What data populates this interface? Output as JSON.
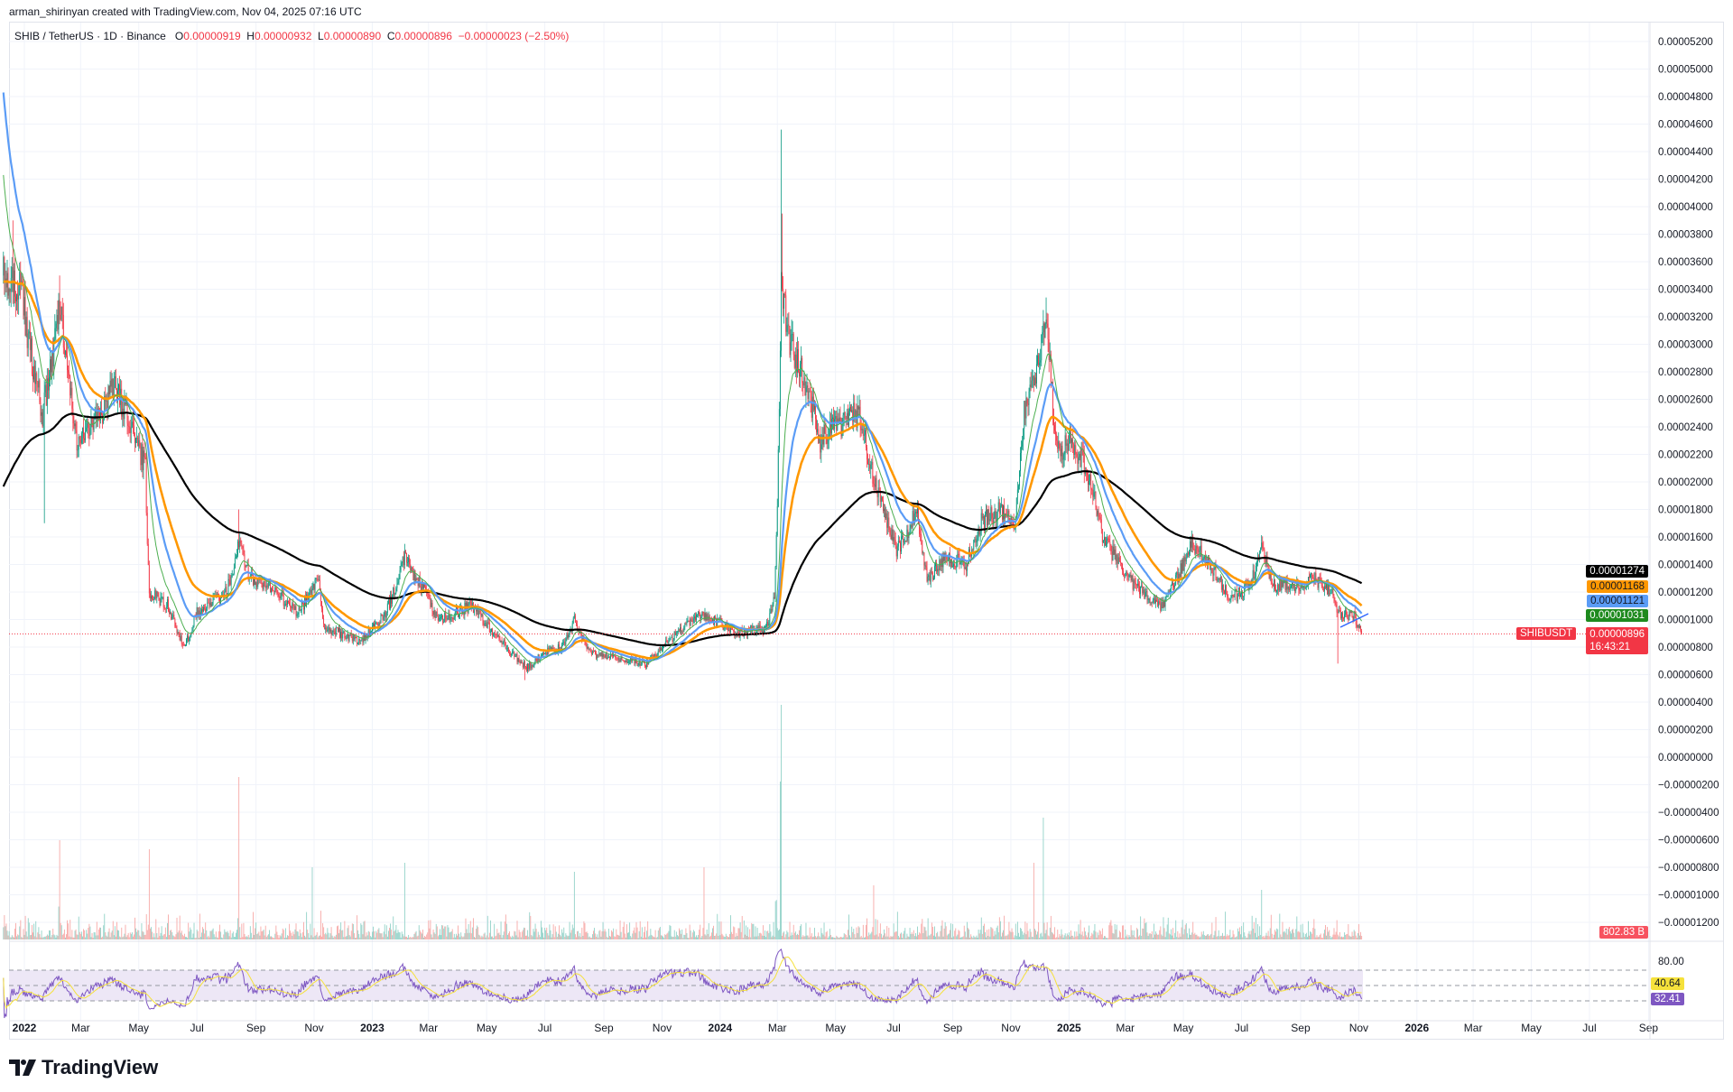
{
  "header": {
    "credit": "arman_shirinyan created with TradingView.com, Nov 04, 2025 07:16 UTC",
    "symbol": "SHIB / TetherUS · 1D · Binance",
    "o_label": "O",
    "open": "0.00000919",
    "h_label": "H",
    "high": "0.00000932",
    "l_label": "L",
    "low": "0.00000890",
    "c_label": "C",
    "close": "0.00000896",
    "change": "−0.00000023 (−2.50%)"
  },
  "labels": {
    "ma_black": "0.00001274",
    "ma_orange": "0.00001168",
    "ma_blue": "0.00001121",
    "ma_green": "0.00001031",
    "symbol_tag": "SHIBUSDT",
    "last_price": "0.00000896",
    "countdown": "16:43:21",
    "volume": "802.83 B",
    "rsi_level": "80.00",
    "rsi_signal": "40.64",
    "rsi_value": "32.41"
  },
  "colors": {
    "up": "#089981",
    "down": "#f23645",
    "ma_black": "#000000",
    "ma_orange": "#ff9800",
    "ma_blue": "#5b9cf6",
    "ma_green": "#388e3c",
    "rsi": "#7e57c2",
    "rsi_ma": "#f5e13b",
    "rsi_band": "#ede7f6"
  },
  "logo": "TradingView",
  "chart_data": {
    "type": "candlestick",
    "price_axis": [
      "0.00005200",
      "0.00005000",
      "0.00004800",
      "0.00004600",
      "0.00004400",
      "0.00004200",
      "0.00004000",
      "0.00003800",
      "0.00003600",
      "0.00003400",
      "0.00003200",
      "0.00003000",
      "0.00002800",
      "0.00002600",
      "0.00002400",
      "0.00002200",
      "0.00002000",
      "0.00001800",
      "0.00001600",
      "0.00001400",
      "0.00001200",
      "0.00001000",
      "0.00000800",
      "0.00000600",
      "0.00000400",
      "0.00000200",
      "0.00000000",
      "−0.00000200",
      "−0.00000400",
      "−0.00000600",
      "−0.00000800",
      "−0.00001000",
      "−0.00001200"
    ],
    "time_axis": [
      {
        "label": "2022",
        "date": "2022-01-01",
        "bold": true
      },
      {
        "label": "Mar",
        "date": "2022-03-01"
      },
      {
        "label": "May",
        "date": "2022-05-01"
      },
      {
        "label": "Jul",
        "date": "2022-07-01"
      },
      {
        "label": "Sep",
        "date": "2022-09-01"
      },
      {
        "label": "Nov",
        "date": "2022-11-01"
      },
      {
        "label": "2023",
        "date": "2023-01-01",
        "bold": true
      },
      {
        "label": "Mar",
        "date": "2023-03-01"
      },
      {
        "label": "May",
        "date": "2023-05-01"
      },
      {
        "label": "Jul",
        "date": "2023-07-01"
      },
      {
        "label": "Sep",
        "date": "2023-09-01"
      },
      {
        "label": "Nov",
        "date": "2023-11-01"
      },
      {
        "label": "2024",
        "date": "2024-01-01",
        "bold": true
      },
      {
        "label": "Mar",
        "date": "2024-03-01"
      },
      {
        "label": "May",
        "date": "2024-05-01"
      },
      {
        "label": "Jul",
        "date": "2024-07-01"
      },
      {
        "label": "Sep",
        "date": "2024-09-01"
      },
      {
        "label": "Nov",
        "date": "2024-11-01"
      },
      {
        "label": "2025",
        "date": "2025-01-01",
        "bold": true
      },
      {
        "label": "Mar",
        "date": "2025-03-01"
      },
      {
        "label": "May",
        "date": "2025-05-01"
      },
      {
        "label": "Jul",
        "date": "2025-07-01"
      },
      {
        "label": "Sep",
        "date": "2025-09-01"
      },
      {
        "label": "Nov",
        "date": "2025-11-01"
      },
      {
        "label": "2026",
        "date": "2026-01-01",
        "bold": true
      },
      {
        "label": "Mar",
        "date": "2026-03-01"
      },
      {
        "label": "May",
        "date": "2026-05-01"
      },
      {
        "label": "Jul",
        "date": "2026-07-01"
      },
      {
        "label": "Sep",
        "date": "2026-09-01"
      }
    ],
    "close_waypoints": [
      [
        "2021-12-10",
        3.5e-05
      ],
      [
        "2021-12-28",
        3.4e-05
      ],
      [
        "2022-01-20",
        2.5e-05
      ],
      [
        "2022-02-08",
        3.3e-05
      ],
      [
        "2022-02-25",
        2.3e-05
      ],
      [
        "2022-03-15",
        2.4e-05
      ],
      [
        "2022-04-05",
        2.7e-05
      ],
      [
        "2022-04-25",
        2.4e-05
      ],
      [
        "2022-05-08",
        2.1e-05
      ],
      [
        "2022-05-12",
        1.2e-05
      ],
      [
        "2022-06-01",
        1.1e-05
      ],
      [
        "2022-06-18",
        8e-06
      ],
      [
        "2022-07-01",
        1.05e-05
      ],
      [
        "2022-08-01",
        1.2e-05
      ],
      [
        "2022-08-15",
        1.6e-05
      ],
      [
        "2022-08-25",
        1.3e-05
      ],
      [
        "2022-09-15",
        1.25e-05
      ],
      [
        "2022-10-15",
        1.05e-05
      ],
      [
        "2022-11-05",
        1.3e-05
      ],
      [
        "2022-11-12",
        9.5e-06
      ],
      [
        "2022-12-20",
        8.4e-06
      ],
      [
        "2023-01-15",
        1.05e-05
      ],
      [
        "2023-02-04",
        1.45e-05
      ],
      [
        "2023-02-25",
        1.2e-05
      ],
      [
        "2023-03-12",
        1e-05
      ],
      [
        "2023-04-15",
        1.1e-05
      ],
      [
        "2023-05-10",
        9e-06
      ],
      [
        "2023-06-12",
        6.5e-06
      ],
      [
        "2023-07-01",
        7.6e-06
      ],
      [
        "2023-07-20",
        8e-06
      ],
      [
        "2023-08-01",
        1e-05
      ],
      [
        "2023-08-18",
        7.5e-06
      ],
      [
        "2023-09-15",
        7.2e-06
      ],
      [
        "2023-10-15",
        6.8e-06
      ],
      [
        "2023-11-10",
        8.6e-06
      ],
      [
        "2023-12-10",
        1.05e-05
      ],
      [
        "2023-12-25",
        1e-05
      ],
      [
        "2024-01-20",
        9e-06
      ],
      [
        "2024-02-20",
        9.5e-06
      ],
      [
        "2024-02-27",
        1.2e-05
      ],
      [
        "2024-03-05",
        3.4e-05
      ],
      [
        "2024-03-15",
        3e-05
      ],
      [
        "2024-04-01",
        2.7e-05
      ],
      [
        "2024-04-15",
        2.3e-05
      ],
      [
        "2024-05-01",
        2.4e-05
      ],
      [
        "2024-05-25",
        2.5e-05
      ],
      [
        "2024-06-20",
        1.8e-05
      ],
      [
        "2024-07-05",
        1.5e-05
      ],
      [
        "2024-07-25",
        1.8e-05
      ],
      [
        "2024-08-05",
        1.3e-05
      ],
      [
        "2024-08-25",
        1.45e-05
      ],
      [
        "2024-09-15",
        1.4e-05
      ],
      [
        "2024-09-30",
        1.7e-05
      ],
      [
        "2024-10-20",
        1.8e-05
      ],
      [
        "2024-11-05",
        1.7e-05
      ],
      [
        "2024-11-15",
        2.5e-05
      ],
      [
        "2024-12-01",
        2.9e-05
      ],
      [
        "2024-12-08",
        3.2e-05
      ],
      [
        "2024-12-20",
        2.2e-05
      ],
      [
        "2025-01-05",
        2.3e-05
      ],
      [
        "2025-01-25",
        2e-05
      ],
      [
        "2025-02-05",
        1.6e-05
      ],
      [
        "2025-03-10",
        1.25e-05
      ],
      [
        "2025-04-08",
        1.1e-05
      ],
      [
        "2025-05-10",
        1.55e-05
      ],
      [
        "2025-05-25",
        1.45e-05
      ],
      [
        "2025-06-20",
        1.15e-05
      ],
      [
        "2025-07-10",
        1.25e-05
      ],
      [
        "2025-07-22",
        1.5e-05
      ],
      [
        "2025-08-05",
        1.25e-05
      ],
      [
        "2025-09-01",
        1.25e-05
      ],
      [
        "2025-09-15",
        1.3e-05
      ],
      [
        "2025-10-05",
        1.2e-05
      ],
      [
        "2025-10-10",
        1.05e-05
      ],
      [
        "2025-10-28",
        1.02e-05
      ],
      [
        "2025-11-04",
        8.96e-06
      ]
    ],
    "wicks": [
      [
        "2021-12-20",
        "high",
        3.9e-05
      ],
      [
        "2022-01-22",
        "low",
        1.7e-05
      ],
      [
        "2022-02-07",
        "high",
        3.5e-05
      ],
      [
        "2022-08-14",
        "high",
        1.8e-05
      ],
      [
        "2023-02-04",
        "high",
        1.55e-05
      ],
      [
        "2023-06-10",
        "low",
        5.6e-06
      ],
      [
        "2024-03-05",
        "high",
        4.56e-05
      ],
      [
        "2024-03-06",
        "high",
        3.95e-05
      ],
      [
        "2024-12-08",
        "high",
        3.34e-05
      ],
      [
        "2025-10-10",
        "low",
        6.8e-06
      ]
    ],
    "volume_spikes_billions": [
      [
        "2022-02-07",
        22000
      ],
      [
        "2022-05-12",
        20000
      ],
      [
        "2022-08-14",
        36000
      ],
      [
        "2022-10-30",
        16000
      ],
      [
        "2023-02-04",
        17000
      ],
      [
        "2023-08-01",
        15000
      ],
      [
        "2023-12-15",
        16000
      ],
      [
        "2024-03-05",
        52000
      ],
      [
        "2024-03-04",
        35000
      ],
      [
        "2024-06-10",
        12000
      ],
      [
        "2024-11-25",
        17000
      ],
      [
        "2024-12-05",
        27000
      ],
      [
        "2025-07-22",
        11000
      ]
    ],
    "moving_averages": [
      {
        "color": "black",
        "last": 1.274e-05
      },
      {
        "color": "orange",
        "last": 1.168e-05
      },
      {
        "color": "blue",
        "last": 1.121e-05
      },
      {
        "color": "green",
        "last": 1.031e-05
      }
    ],
    "rsi": {
      "levels": [
        70,
        50,
        30
      ],
      "axis_label": 80,
      "last": 32.41,
      "signal_last": 40.64
    },
    "last_volume": "802.83 B"
  }
}
